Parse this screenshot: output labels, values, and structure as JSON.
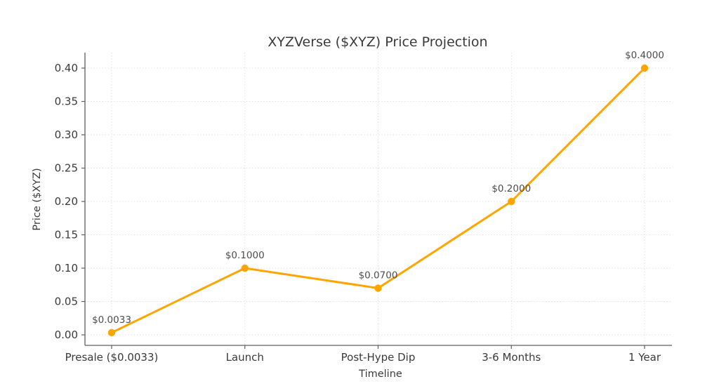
{
  "chart_data": {
    "type": "line",
    "title": "XYZVerse ($XYZ) Price Projection",
    "xlabel": "Timeline",
    "ylabel": "Price ($XYZ)",
    "categories": [
      "Presale ($0.0033)",
      "Launch",
      "Post-Hype Dip",
      "3-6 Months",
      "1 Year"
    ],
    "values": [
      0.0033,
      0.1,
      0.07,
      0.2,
      0.4
    ],
    "point_labels": [
      "$0.0033",
      "$0.1000",
      "$0.0700",
      "$0.2000",
      "$0.4000"
    ],
    "y_ticks": [
      0.0,
      0.05,
      0.1,
      0.15,
      0.2,
      0.25,
      0.3,
      0.35,
      0.4
    ],
    "y_tick_labels": [
      "0.00",
      "0.05",
      "0.10",
      "0.15",
      "0.20",
      "0.25",
      "0.30",
      "0.35",
      "0.40"
    ],
    "ylim": [
      0,
      0.4
    ],
    "grid": true,
    "legend": "none",
    "line_color": "#FFA500",
    "marker": "circle",
    "grid_color": "#e0e0e0",
    "axis_color": "#5f5f5f",
    "text_color": "#3a3a3a",
    "point_label_color": "#4d4d4d",
    "background_color": "#ffffff"
  }
}
